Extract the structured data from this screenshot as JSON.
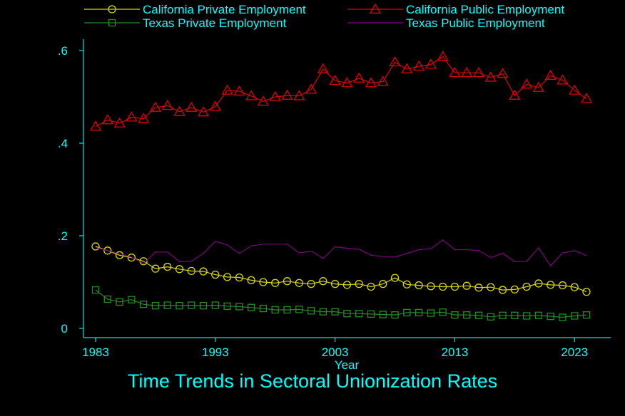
{
  "chart_data": {
    "type": "line",
    "title": "Time Trends in Sectoral Unionization Rates",
    "xlabel": "Year",
    "ylabel": "",
    "xlim": [
      1983,
      2024
    ],
    "ylim": [
      0,
      0.6
    ],
    "x_ticks": [
      1983,
      1993,
      2003,
      2013,
      2023
    ],
    "x_tick_labels": [
      "1983",
      "1993",
      "2003",
      "2013",
      "2023"
    ],
    "y_ticks": [
      0,
      0.2,
      0.4,
      0.6
    ],
    "y_tick_labels": [
      "0",
      ".2",
      ".4",
      ".6"
    ],
    "grid": false,
    "legend_position": "top",
    "colors": {
      "background": "#000000",
      "axis": "#00e5e5",
      "text": "#00ffff"
    },
    "x": [
      1983,
      1984,
      1985,
      1986,
      1987,
      1988,
      1989,
      1990,
      1991,
      1992,
      1993,
      1994,
      1995,
      1996,
      1997,
      1998,
      1999,
      2000,
      2001,
      2002,
      2003,
      2004,
      2005,
      2006,
      2007,
      2008,
      2009,
      2010,
      2011,
      2012,
      2013,
      2014,
      2015,
      2016,
      2017,
      2018,
      2019,
      2020,
      2021,
      2022,
      2023,
      2024
    ],
    "series": [
      {
        "name": "California Private Employment",
        "color": "#d8d800",
        "marker": "circle",
        "values": [
          0.177,
          0.168,
          0.158,
          0.153,
          0.145,
          0.129,
          0.133,
          0.128,
          0.124,
          0.123,
          0.116,
          0.111,
          0.11,
          0.104,
          0.1,
          0.098,
          0.102,
          0.098,
          0.096,
          0.102,
          0.096,
          0.094,
          0.096,
          0.09,
          0.096,
          0.109,
          0.095,
          0.093,
          0.091,
          0.09,
          0.09,
          0.092,
          0.088,
          0.089,
          0.083,
          0.084,
          0.09,
          0.097,
          0.094,
          0.093,
          0.089,
          0.079
        ]
      },
      {
        "name": "California Public Employment",
        "color": "#e00000",
        "marker": "triangle",
        "values": [
          0.436,
          0.45,
          0.443,
          0.456,
          0.453,
          0.477,
          0.481,
          0.468,
          0.477,
          0.467,
          0.479,
          0.514,
          0.512,
          0.502,
          0.49,
          0.5,
          0.503,
          0.502,
          0.516,
          0.56,
          0.535,
          0.53,
          0.54,
          0.53,
          0.533,
          0.575,
          0.56,
          0.566,
          0.57,
          0.587,
          0.552,
          0.552,
          0.552,
          0.542,
          0.55,
          0.503,
          0.527,
          0.52,
          0.546,
          0.536,
          0.514,
          0.496
        ]
      },
      {
        "name": "Texas Private Employment",
        "color": "#228b22",
        "marker": "square",
        "values": [
          0.083,
          0.063,
          0.057,
          0.062,
          0.052,
          0.049,
          0.05,
          0.049,
          0.05,
          0.049,
          0.05,
          0.048,
          0.047,
          0.045,
          0.043,
          0.04,
          0.04,
          0.041,
          0.038,
          0.036,
          0.036,
          0.032,
          0.032,
          0.031,
          0.03,
          0.029,
          0.034,
          0.034,
          0.033,
          0.035,
          0.029,
          0.029,
          0.028,
          0.025,
          0.028,
          0.028,
          0.027,
          0.028,
          0.026,
          0.024,
          0.027,
          0.029
        ]
      },
      {
        "name": "Texas Public Employment",
        "color": "#800080",
        "marker": "none",
        "values": [
          0.175,
          0.168,
          0.161,
          0.154,
          0.14,
          0.165,
          0.165,
          0.144,
          0.145,
          0.162,
          0.188,
          0.18,
          0.162,
          0.178,
          0.182,
          0.182,
          0.182,
          0.163,
          0.167,
          0.151,
          0.176,
          0.173,
          0.171,
          0.158,
          0.155,
          0.154,
          0.162,
          0.17,
          0.172,
          0.191,
          0.17,
          0.17,
          0.168,
          0.153,
          0.162,
          0.144,
          0.145,
          0.174,
          0.135,
          0.163,
          0.168,
          0.157
        ]
      }
    ]
  }
}
